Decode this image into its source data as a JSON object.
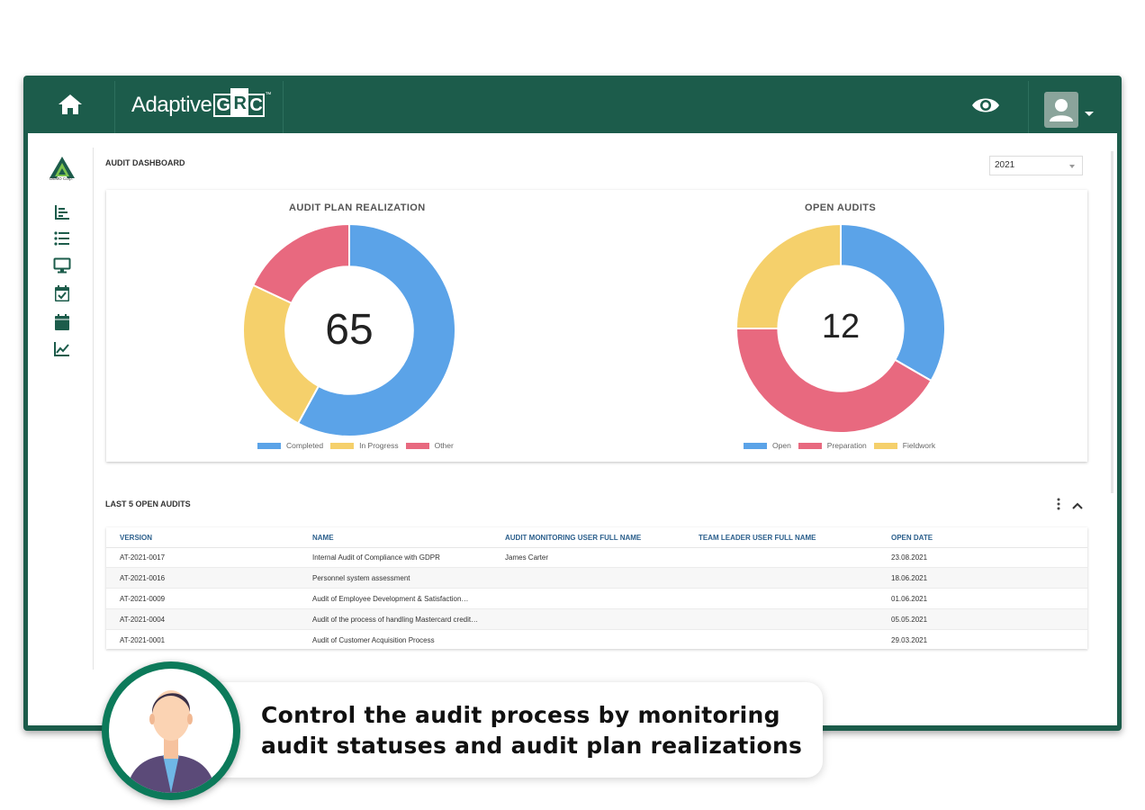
{
  "header": {
    "logo_text": "Adaptive",
    "logo_grc": [
      "G",
      "R",
      "C"
    ],
    "logo_tm": "™"
  },
  "sidebar": {
    "company_name": "DEMO Corp.",
    "items": [
      {
        "icon": "bar-chart-icon"
      },
      {
        "icon": "list-icon"
      },
      {
        "icon": "monitor-icon"
      },
      {
        "icon": "calendar-check-icon"
      },
      {
        "icon": "calendar-icon"
      },
      {
        "icon": "line-chart-icon"
      }
    ]
  },
  "dashboard": {
    "title": "AUDIT DASHBOARD",
    "year": "2021"
  },
  "chart_data": [
    {
      "type": "pie",
      "title": "AUDIT PLAN REALIZATION",
      "center_value": "65",
      "categories": [
        "Completed",
        "In Progress",
        "Other"
      ],
      "values": [
        58,
        24,
        18
      ],
      "colors": [
        "#5ba3e8",
        "#f5d06b",
        "#e8697f"
      ]
    },
    {
      "type": "pie",
      "title": "OPEN AUDITS",
      "center_value": "12",
      "categories": [
        "Open",
        "Preparation",
        "Fieldwork"
      ],
      "values": [
        4,
        5,
        3
      ],
      "colors": [
        "#5ba3e8",
        "#e8697f",
        "#f5d06b"
      ]
    }
  ],
  "table": {
    "title": "LAST 5 OPEN AUDITS",
    "columns": [
      "VERSION",
      "NAME",
      "AUDIT MONITORING USER FULL NAME",
      "TEAM LEADER USER FULL NAME",
      "OPEN DATE"
    ],
    "rows": [
      [
        "AT-2021-0017",
        "Internal Audit of Compliance with GDPR",
        "James Carter",
        "",
        "23.08.2021"
      ],
      [
        "AT-2021-0016",
        "Personnel system assessment",
        "",
        "",
        "18.06.2021"
      ],
      [
        "AT-2021-0009",
        "Audit of Employee Development & Satisfaction…",
        "",
        "",
        "01.06.2021"
      ],
      [
        "AT-2021-0004",
        "Audit of the process of handling Mastercard credit…",
        "",
        "",
        "05.05.2021"
      ],
      [
        "AT-2021-0001",
        "Audit of Customer Acquisition Process",
        "",
        "",
        "29.03.2021"
      ]
    ]
  },
  "callout": {
    "line1": "Control the audit process by monitoring",
    "line2": "audit statuses and audit plan realizations"
  },
  "colors": {
    "brand_green": "#1c5c4b",
    "header_blue": "#2b5f8c"
  }
}
